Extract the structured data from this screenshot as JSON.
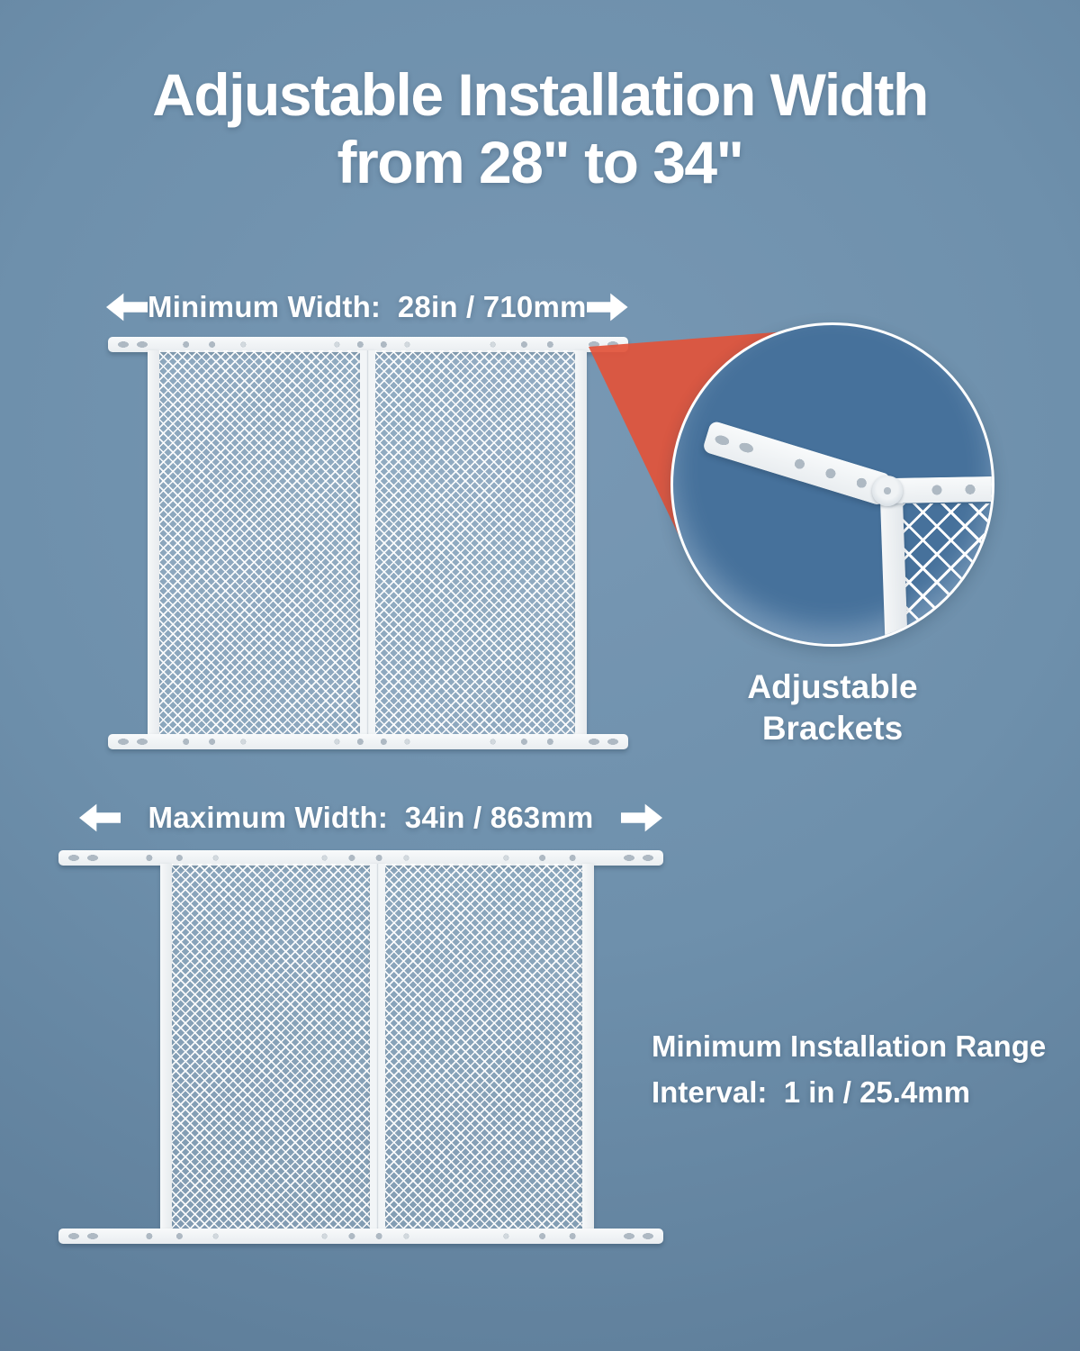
{
  "title": {
    "line1": "Adjustable Installation Width",
    "line2": "from 28\" to 34\""
  },
  "min_section": {
    "label": "Minimum Width:  28in / 710mm"
  },
  "max_section": {
    "label": "Maximum Width:  34in / 863mm"
  },
  "callout": {
    "line1": "Adjustable",
    "line2": "Brackets"
  },
  "note": {
    "line1": "Minimum Installation Range",
    "line2": "Interval:  1 in / 25.4mm"
  },
  "colors": {
    "background_center": "#7898b4",
    "background_edge": "#577391",
    "accent_orange": "#e25339",
    "circle_fill": "#46719b",
    "frame_white": "#f1f4f6",
    "text": "#ffffff"
  }
}
